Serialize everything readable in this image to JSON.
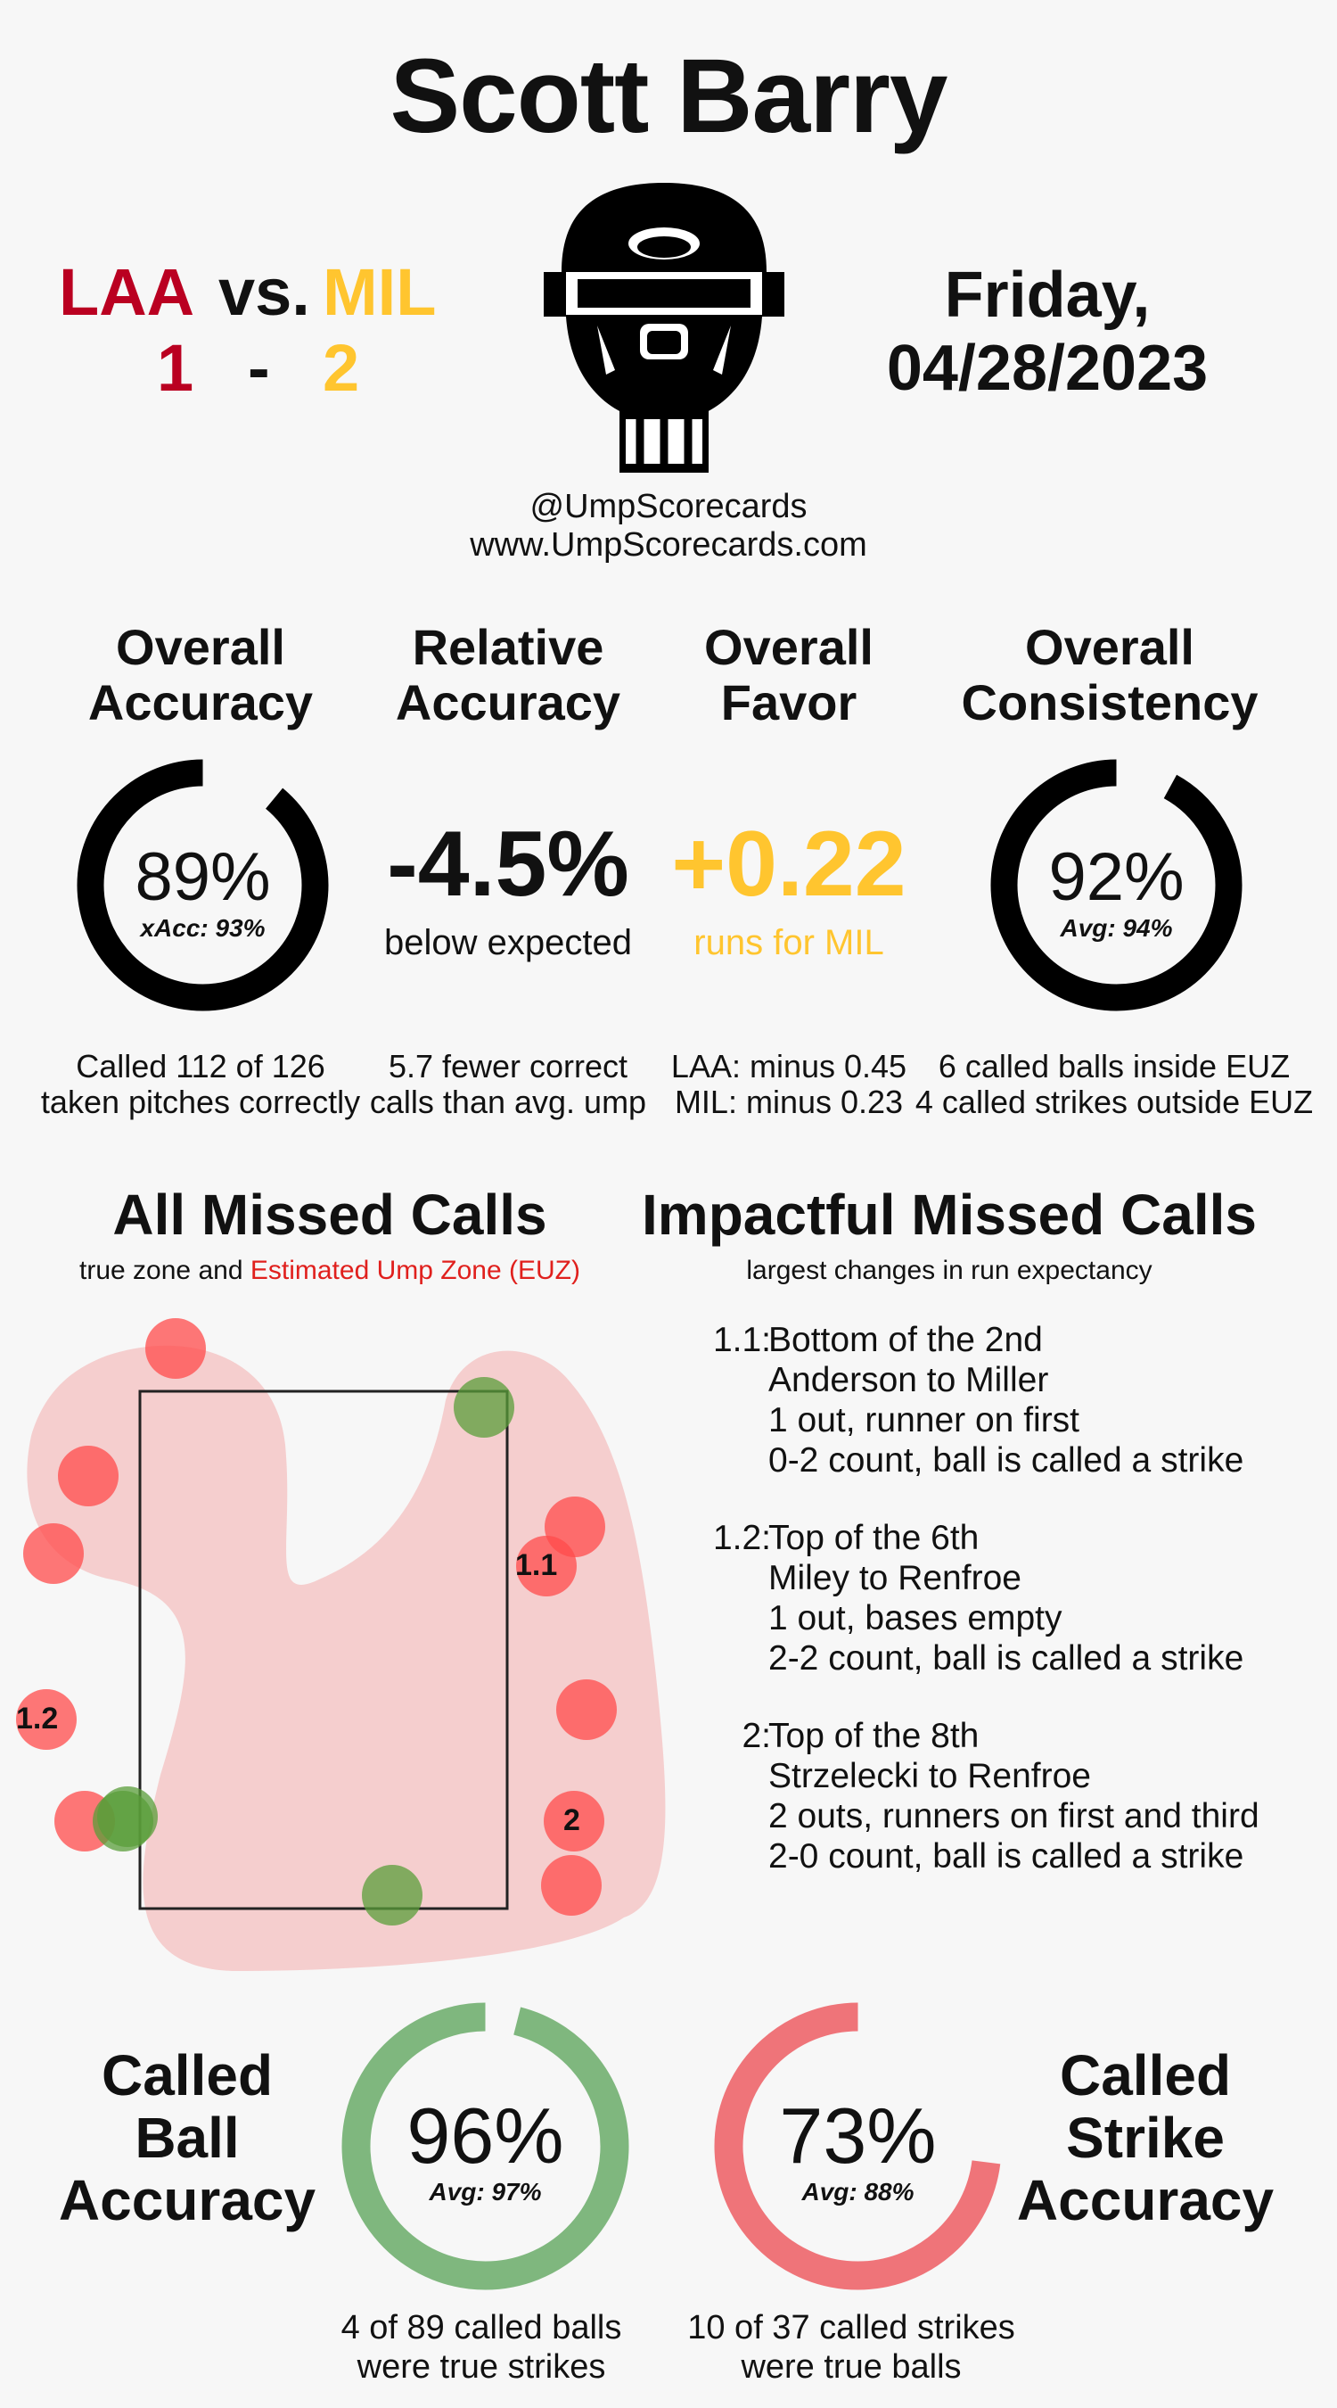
{
  "header": {
    "umpire_name": "Scott Barry",
    "away_team": "LAA",
    "vs": "vs.",
    "home_team": "MIL",
    "away_score": "1",
    "dash": "-",
    "home_score": "2",
    "date_line1": "Friday,",
    "date_line2": "04/28/2023",
    "handle": "@UmpScorecards",
    "website": "www.UmpScorecards.com",
    "icon": "umpire-mask-icon"
  },
  "colors": {
    "away": "#ba0021",
    "home": "#ffc52f",
    "ring": "#000000",
    "ball_ring": "#7fb77e",
    "strike_ring": "#ef7479",
    "euz_text": "#e0201d",
    "euz_fill": "#f5c7c7",
    "miss_strike": "#ff4b4b",
    "miss_ball": "#5a9e3a"
  },
  "stats": {
    "overall_accuracy": {
      "title_line1": "Overall",
      "title_line2": "Accuracy",
      "value": "89%",
      "sub": "xAcc: 93%",
      "fraction": 0.89,
      "note_line1": "Called 112 of 126",
      "note_line2": "taken pitches correctly"
    },
    "relative_accuracy": {
      "title_line1": "Relative",
      "title_line2": "Accuracy",
      "value": "-4.5%",
      "sub": "below expected",
      "note_line1": "5.7 fewer correct",
      "note_line2": "calls than avg. ump"
    },
    "overall_favor": {
      "title_line1": "Overall",
      "title_line2": "Favor",
      "value": "+0.22",
      "sub": "runs for MIL",
      "note_line1": "LAA: minus 0.45",
      "note_line2": "MIL: minus 0.23"
    },
    "overall_consistency": {
      "title_line1": "Overall",
      "title_line2": "Consistency",
      "value": "92%",
      "sub": "Avg: 94%",
      "fraction": 0.92,
      "note_line1": "6 called balls inside EUZ",
      "note_line2": "4 called strikes outside EUZ"
    }
  },
  "missed_calls": {
    "title": "All Missed Calls",
    "subtitle_prefix": "true zone and",
    "subtitle_highlight": "Estimated Ump Zone (EUZ)",
    "labels": [
      "1.1",
      "1.2",
      "2"
    ]
  },
  "impactful": {
    "title": "Impactful Missed Calls",
    "subtitle": "largest changes in run expectancy",
    "calls": [
      {
        "id": "1.1:",
        "lines": [
          "Bottom of the 2nd",
          "Anderson to Miller",
          "1 out, runner on first",
          "0-2 count, ball is called a strike"
        ]
      },
      {
        "id": "1.2:",
        "lines": [
          "Top of the 6th",
          "Miley to Renfroe",
          "1 out, bases empty",
          "2-2 count, ball is called a strike"
        ]
      },
      {
        "id": "2:",
        "lines": [
          "Top of the 8th",
          "Strzelecki to Renfroe",
          "2 outs, runners on first and third",
          "2-0 count, ball is called a strike"
        ]
      }
    ]
  },
  "called_ball": {
    "title_line1": "Called",
    "title_line2": "Ball",
    "title_line3": "Accuracy",
    "value": "96%",
    "sub": "Avg: 97%",
    "fraction": 0.96,
    "note_line1": "4 of 89 called balls",
    "note_line2": "were true strikes"
  },
  "called_strike": {
    "title_line1": "Called",
    "title_line2": "Strike",
    "title_line3": "Accuracy",
    "value": "73%",
    "sub": "Avg: 88%",
    "fraction": 0.73,
    "note_line1": "10 of 37 called strikes",
    "note_line2": "were true balls"
  }
}
